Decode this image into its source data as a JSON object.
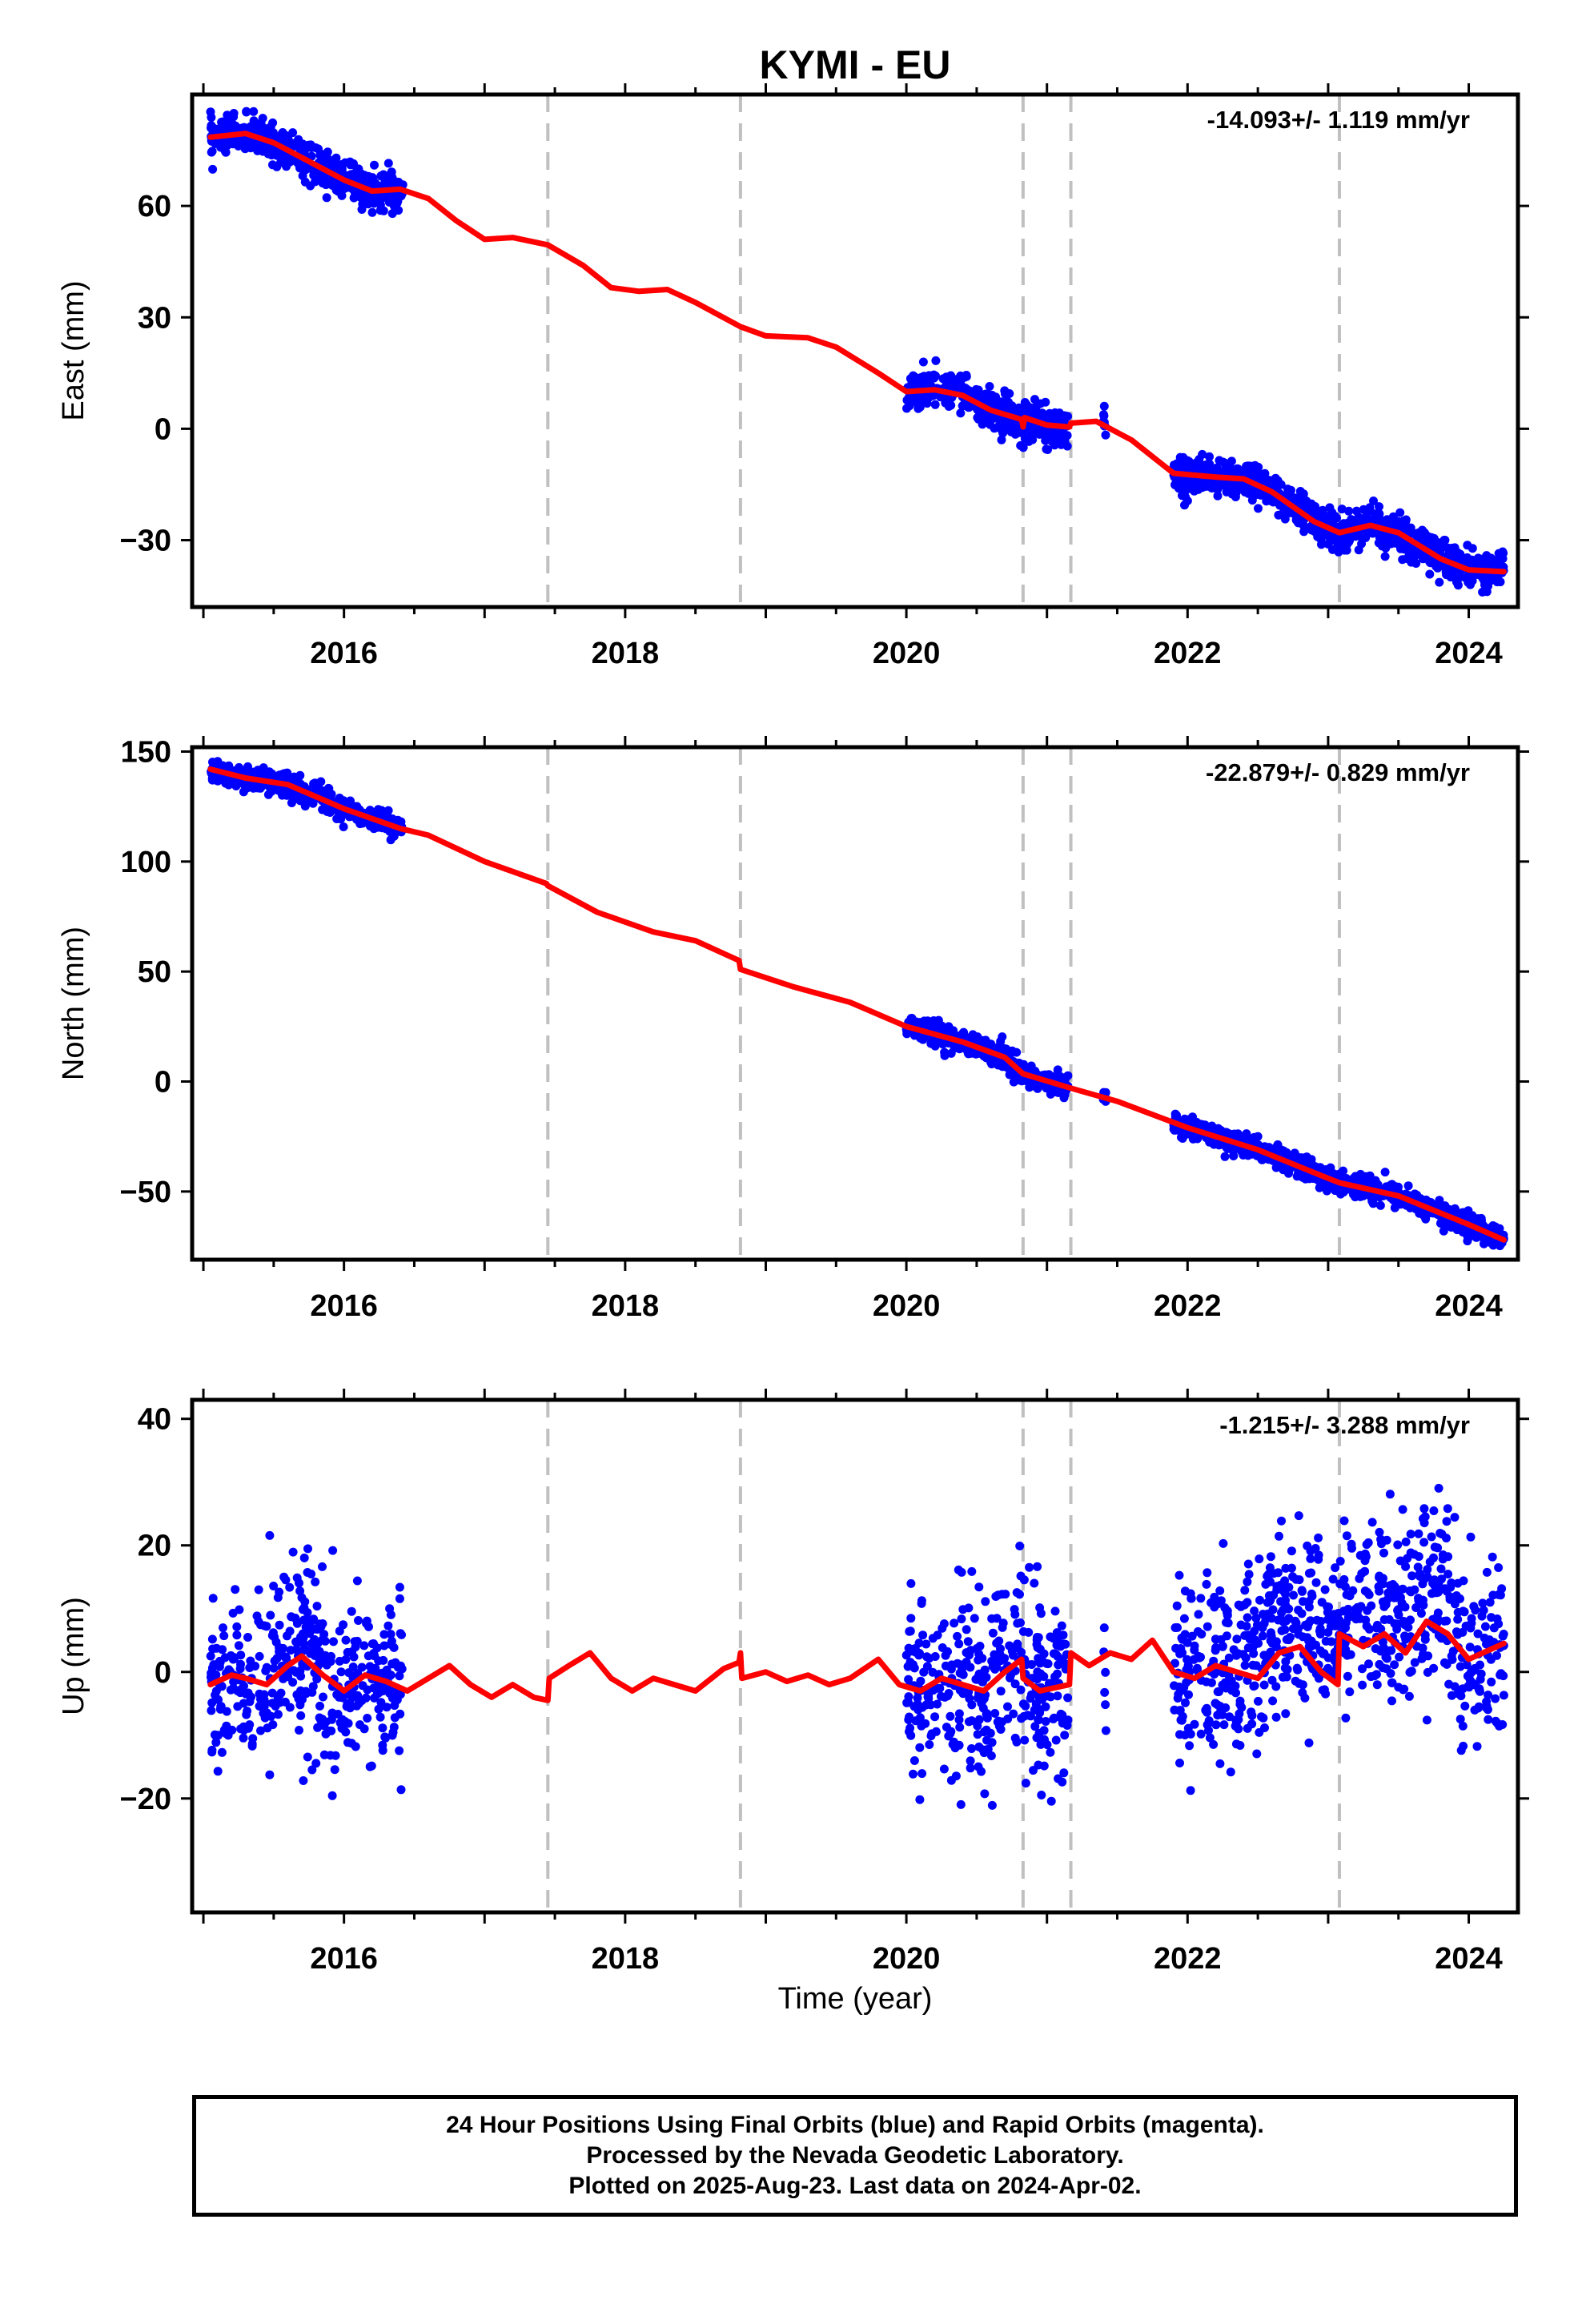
{
  "chart_data": {
    "title": "KYMI - EU",
    "xlabel": "Time (year)",
    "xlim": [
      2014.92,
      2024.35
    ],
    "x_ticks": [
      2016,
      2018,
      2020,
      2022,
      2024
    ],
    "x_tick_labels": [
      "2016",
      "2018",
      "2020",
      "2022",
      "2024"
    ],
    "equipment_changes": [
      2017.45,
      2018.82,
      2020.83,
      2021.17,
      2023.08
    ],
    "data_coverage": [
      [
        2015.05,
        2016.42
      ],
      [
        2020.0,
        2021.15
      ],
      [
        2021.4,
        2021.42
      ],
      [
        2021.9,
        2024.25
      ]
    ],
    "colors": {
      "points": "#0000ff",
      "fit": "#ff0000",
      "breaks": "#c0c0c0"
    },
    "panels": [
      {
        "name": "east",
        "type": "scatter",
        "ylabel": "East (mm)",
        "rate_label": "-14.093+/- 1.119 mm/yr",
        "ylim": [
          -48,
          90
        ],
        "y_ticks": [
          -30,
          0,
          30,
          60
        ],
        "y_tick_labels": [
          "−30",
          "0",
          "30",
          "60"
        ],
        "scatter_spread": 2.5,
        "fit": [
          [
            2015.05,
            78.5
          ],
          [
            2015.3,
            79.5
          ],
          [
            2015.5,
            77
          ],
          [
            2015.8,
            71
          ],
          [
            2016.0,
            67
          ],
          [
            2016.2,
            64
          ],
          [
            2016.4,
            64.5
          ],
          [
            2016.6,
            62
          ],
          [
            2016.8,
            56
          ],
          [
            2017.0,
            51
          ],
          [
            2017.2,
            51.5
          ],
          [
            2017.45,
            49.5
          ],
          [
            2017.7,
            44
          ],
          [
            2017.9,
            38
          ],
          [
            2018.1,
            37
          ],
          [
            2018.3,
            37.5
          ],
          [
            2018.5,
            34
          ],
          [
            2018.82,
            27.5
          ],
          [
            2019.0,
            25
          ],
          [
            2019.3,
            24.5
          ],
          [
            2019.5,
            22
          ],
          [
            2019.8,
            15
          ],
          [
            2020.0,
            10
          ],
          [
            2020.2,
            10.5
          ],
          [
            2020.4,
            9
          ],
          [
            2020.6,
            5
          ],
          [
            2020.82,
            2.5
          ],
          [
            2020.83,
            0.5
          ],
          [
            2020.84,
            3
          ],
          [
            2021.0,
            1
          ],
          [
            2021.16,
            0.5
          ],
          [
            2021.17,
            1.5
          ],
          [
            2021.35,
            2
          ],
          [
            2021.6,
            -3
          ],
          [
            2021.9,
            -12
          ],
          [
            2022.2,
            -13
          ],
          [
            2022.4,
            -13.5
          ],
          [
            2022.6,
            -17
          ],
          [
            2022.9,
            -25
          ],
          [
            2023.08,
            -28
          ],
          [
            2023.3,
            -26
          ],
          [
            2023.5,
            -28
          ],
          [
            2023.8,
            -35
          ],
          [
            2024.0,
            -38
          ],
          [
            2024.25,
            -38.5
          ]
        ]
      },
      {
        "name": "north",
        "type": "scatter",
        "ylabel": "North (mm)",
        "rate_label": "-22.879+/- 0.829 mm/yr",
        "ylim": [
          -81,
          152
        ],
        "y_ticks": [
          -50,
          0,
          50,
          100,
          150
        ],
        "y_tick_labels": [
          "−50",
          "0",
          "50",
          "100",
          "150"
        ],
        "scatter_spread": 2.5,
        "fit": [
          [
            2015.05,
            142
          ],
          [
            2015.3,
            138
          ],
          [
            2015.6,
            135
          ],
          [
            2016.0,
            124
          ],
          [
            2016.4,
            115
          ],
          [
            2016.6,
            112
          ],
          [
            2017.0,
            100
          ],
          [
            2017.44,
            90
          ],
          [
            2017.45,
            89
          ],
          [
            2017.8,
            77
          ],
          [
            2018.2,
            68
          ],
          [
            2018.5,
            64
          ],
          [
            2018.81,
            55
          ],
          [
            2018.82,
            51
          ],
          [
            2019.2,
            43
          ],
          [
            2019.6,
            36
          ],
          [
            2020.0,
            25
          ],
          [
            2020.4,
            18
          ],
          [
            2020.7,
            11
          ],
          [
            2020.83,
            3.5
          ],
          [
            2021.17,
            -3
          ],
          [
            2021.5,
            -9
          ],
          [
            2022.0,
            -21
          ],
          [
            2022.5,
            -31
          ],
          [
            2023.0,
            -44
          ],
          [
            2023.08,
            -46
          ],
          [
            2023.5,
            -52
          ],
          [
            2024.0,
            -65
          ],
          [
            2024.25,
            -72
          ]
        ]
      },
      {
        "name": "up",
        "type": "scatter",
        "ylabel": "Up (mm)",
        "rate_label": "-1.215+/- 3.288 mm/yr",
        "ylim": [
          -38,
          43
        ],
        "y_ticks": [
          -20,
          0,
          20,
          40
        ],
        "y_tick_labels": [
          "−20",
          "0",
          "20",
          "40"
        ],
        "scatter_spread": 7,
        "fit": [
          [
            2015.05,
            -2
          ],
          [
            2015.2,
            -0.5
          ],
          [
            2015.3,
            -1
          ],
          [
            2015.45,
            -2
          ],
          [
            2015.6,
            1
          ],
          [
            2015.7,
            2.5
          ],
          [
            2015.85,
            -0.5
          ],
          [
            2016.0,
            -3
          ],
          [
            2016.15,
            -0.5
          ],
          [
            2016.3,
            -1.5
          ],
          [
            2016.45,
            -3
          ],
          [
            2016.6,
            -1
          ],
          [
            2016.75,
            1
          ],
          [
            2016.9,
            -2
          ],
          [
            2017.05,
            -4
          ],
          [
            2017.2,
            -2
          ],
          [
            2017.35,
            -4
          ],
          [
            2017.45,
            -4.5
          ],
          [
            2017.46,
            -1
          ],
          [
            2017.6,
            1
          ],
          [
            2017.75,
            3
          ],
          [
            2017.9,
            -1
          ],
          [
            2018.05,
            -3
          ],
          [
            2018.2,
            -1
          ],
          [
            2018.35,
            -2
          ],
          [
            2018.5,
            -3
          ],
          [
            2018.7,
            0.5
          ],
          [
            2018.81,
            1.5
          ],
          [
            2018.82,
            3
          ],
          [
            2018.83,
            -1
          ],
          [
            2019.0,
            0
          ],
          [
            2019.15,
            -1.5
          ],
          [
            2019.3,
            -0.5
          ],
          [
            2019.45,
            -2
          ],
          [
            2019.6,
            -1
          ],
          [
            2019.8,
            2
          ],
          [
            2019.95,
            -2
          ],
          [
            2020.1,
            -3
          ],
          [
            2020.25,
            -1
          ],
          [
            2020.4,
            -2
          ],
          [
            2020.55,
            -3
          ],
          [
            2020.7,
            0
          ],
          [
            2020.82,
            2
          ],
          [
            2020.83,
            -1
          ],
          [
            2020.95,
            -3
          ],
          [
            2021.16,
            -2
          ],
          [
            2021.17,
            3
          ],
          [
            2021.3,
            1
          ],
          [
            2021.45,
            3
          ],
          [
            2021.6,
            2
          ],
          [
            2021.75,
            5
          ],
          [
            2021.9,
            0
          ],
          [
            2022.05,
            -1
          ],
          [
            2022.2,
            1
          ],
          [
            2022.35,
            0
          ],
          [
            2022.5,
            -1
          ],
          [
            2022.65,
            3
          ],
          [
            2022.8,
            4
          ],
          [
            2022.95,
            0
          ],
          [
            2023.07,
            -2
          ],
          [
            2023.08,
            6
          ],
          [
            2023.25,
            4
          ],
          [
            2023.4,
            6
          ],
          [
            2023.55,
            3
          ],
          [
            2023.7,
            8
          ],
          [
            2023.85,
            6
          ],
          [
            2024.0,
            2
          ],
          [
            2024.1,
            3
          ],
          [
            2024.25,
            4.5
          ]
        ]
      }
    ]
  },
  "caption": {
    "line1": "24 Hour Positions Using Final Orbits (blue) and Rapid Orbits (magenta).",
    "line2": "Processed by the Nevada Geodetic Laboratory.",
    "line3": "Plotted on 2025-Aug-23. Last data on 2024-Apr-02."
  }
}
